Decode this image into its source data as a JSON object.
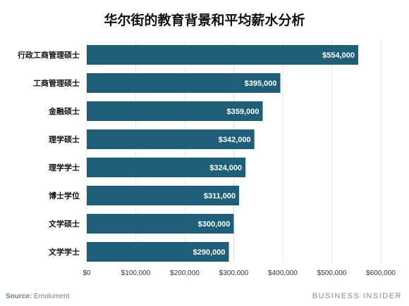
{
  "title": "华尔街的教育背景和平均薪水分析",
  "source_label": "Source:",
  "source_name": "Emolument",
  "brand": "BUSINESS INSIDER",
  "colors": {
    "bar": "#1e5e78",
    "grid": "#e2e6ea",
    "text": "#333333",
    "bar_label": "#ffffff"
  },
  "chart_data": {
    "type": "bar",
    "orientation": "horizontal",
    "title": "华尔街的教育背景和平均薪水分析",
    "categories": [
      "行政工商管理硕士",
      "工商管理硕士",
      "金融硕士",
      "理学硕士",
      "理学学士",
      "博士学位",
      "文学硕士",
      "文学学士"
    ],
    "values": [
      554000,
      395000,
      359000,
      342000,
      324000,
      311000,
      300000,
      290000
    ],
    "data_labels": [
      "$554,000",
      "$395,000",
      "$359,000",
      "$342,000",
      "$324,000",
      "$311,000",
      "$300,000",
      "$290,000"
    ],
    "xlim": [
      0,
      600000
    ],
    "xticks": [
      0,
      100000,
      200000,
      300000,
      400000,
      500000,
      600000
    ],
    "xtick_labels": [
      "$0",
      "$100,000",
      "$200,000",
      "$300,000",
      "$400,000",
      "$500,000",
      "$600,000"
    ],
    "grid": true,
    "xlabel": "",
    "ylabel": ""
  }
}
